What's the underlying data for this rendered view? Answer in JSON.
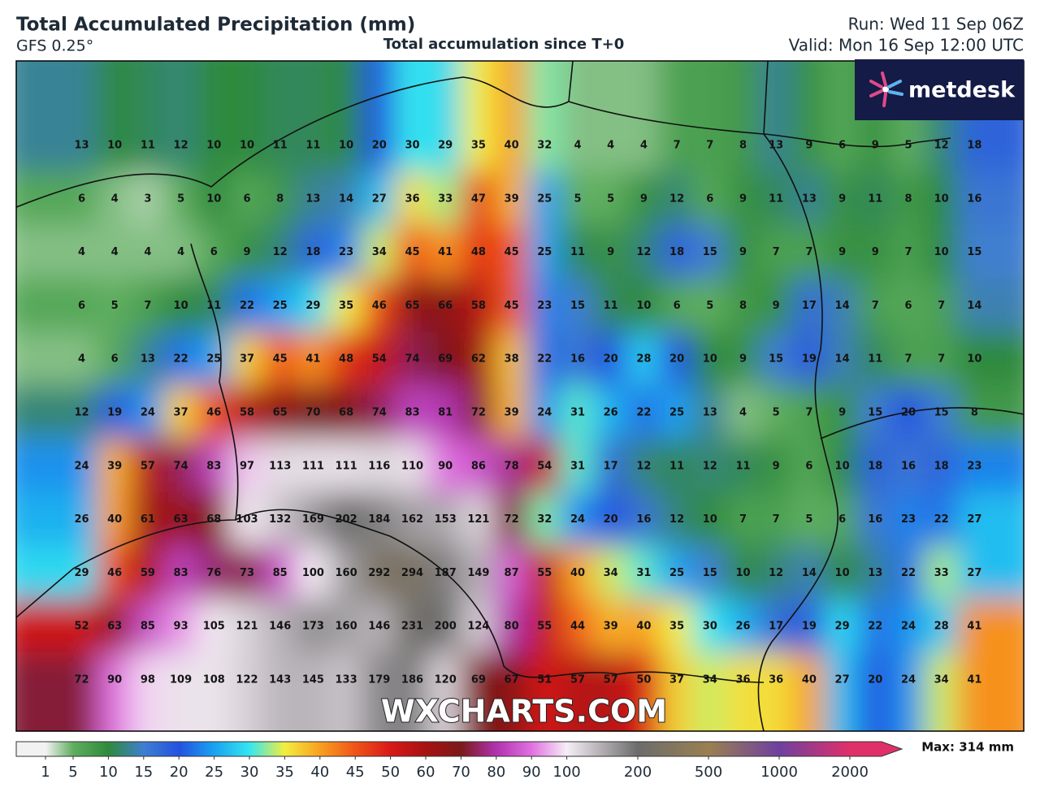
{
  "header": {
    "title": "Total Accumulated Precipitation (mm)",
    "model": "GFS 0.25°",
    "subtitle": "Total accumulation since T+0",
    "run": "Run: Wed 11 Sep 06Z",
    "valid": "Valid: Mon 16 Sep 12:00 UTC"
  },
  "logo": "metdesk",
  "watermark": "WXCHARTS.COM",
  "grid": {
    "rows": [
      [
        13,
        10,
        11,
        12,
        10,
        10,
        11,
        11,
        10,
        20,
        30,
        29,
        35,
        40,
        32,
        4,
        4,
        4,
        7,
        7,
        8,
        13,
        9,
        6,
        9,
        5,
        12,
        18
      ],
      [
        6,
        4,
        3,
        5,
        10,
        6,
        8,
        13,
        14,
        27,
        36,
        33,
        47,
        39,
        25,
        5,
        5,
        9,
        12,
        6,
        9,
        11,
        13,
        9,
        11,
        8,
        10,
        16
      ],
      [
        4,
        4,
        4,
        4,
        6,
        9,
        12,
        18,
        23,
        34,
        45,
        41,
        48,
        45,
        25,
        11,
        9,
        12,
        18,
        15,
        9,
        7,
        7,
        9,
        9,
        7,
        10,
        15
      ],
      [
        6,
        5,
        7,
        10,
        11,
        22,
        25,
        29,
        35,
        46,
        65,
        66,
        58,
        45,
        23,
        15,
        11,
        10,
        6,
        5,
        8,
        9,
        17,
        14,
        7,
        6,
        7,
        14
      ],
      [
        4,
        6,
        13,
        22,
        25,
        37,
        45,
        41,
        48,
        54,
        74,
        69,
        62,
        38,
        22,
        16,
        20,
        28,
        20,
        10,
        9,
        15,
        19,
        14,
        11,
        7,
        7,
        10
      ],
      [
        12,
        19,
        24,
        37,
        46,
        58,
        65,
        70,
        68,
        74,
        83,
        81,
        72,
        39,
        24,
        31,
        26,
        22,
        25,
        13,
        4,
        5,
        7,
        9,
        15,
        20,
        15,
        8
      ],
      [
        24,
        39,
        57,
        74,
        83,
        97,
        113,
        111,
        111,
        116,
        110,
        90,
        86,
        78,
        54,
        31,
        17,
        12,
        11,
        12,
        11,
        9,
        6,
        10,
        18,
        16,
        18,
        23
      ],
      [
        26,
        40,
        61,
        63,
        68,
        103,
        132,
        169,
        202,
        184,
        162,
        153,
        121,
        72,
        32,
        24,
        20,
        16,
        12,
        10,
        7,
        7,
        5,
        6,
        16,
        23,
        22,
        27
      ],
      [
        29,
        46,
        59,
        83,
        76,
        73,
        85,
        100,
        160,
        292,
        294,
        187,
        149,
        87,
        55,
        40,
        34,
        31,
        25,
        15,
        10,
        12,
        14,
        10,
        13,
        22,
        33,
        27
      ],
      [
        52,
        63,
        85,
        93,
        105,
        121,
        146,
        173,
        160,
        146,
        231,
        200,
        124,
        80,
        55,
        44,
        39,
        40,
        35,
        30,
        26,
        17,
        19,
        29,
        22,
        24,
        28,
        41
      ],
      [
        72,
        90,
        98,
        109,
        108,
        122,
        143,
        145,
        133,
        179,
        186,
        120,
        69,
        67,
        51,
        57,
        57,
        50,
        37,
        34,
        36,
        36,
        40,
        27,
        20,
        24,
        34,
        41
      ]
    ]
  },
  "colorbar": {
    "labels": [
      1,
      5,
      10,
      15,
      20,
      25,
      30,
      35,
      40,
      45,
      50,
      60,
      70,
      80,
      90,
      100,
      200,
      500,
      1000,
      2000
    ],
    "colors": [
      "#f2f2f2",
      "#5fae5f",
      "#2f8a3c",
      "#3f7fd0",
      "#2452e0",
      "#1aa2f0",
      "#34e6f0",
      "#f2ee40",
      "#f8a020",
      "#f05418",
      "#d81818",
      "#a81212",
      "#7a1a1a",
      "#b032b0",
      "#e070e0",
      "#f6eef6",
      "#6c6c6c",
      "#9a8050",
      "#6e40a0",
      "#e0306a"
    ],
    "max_label": "Max: 314 mm"
  }
}
